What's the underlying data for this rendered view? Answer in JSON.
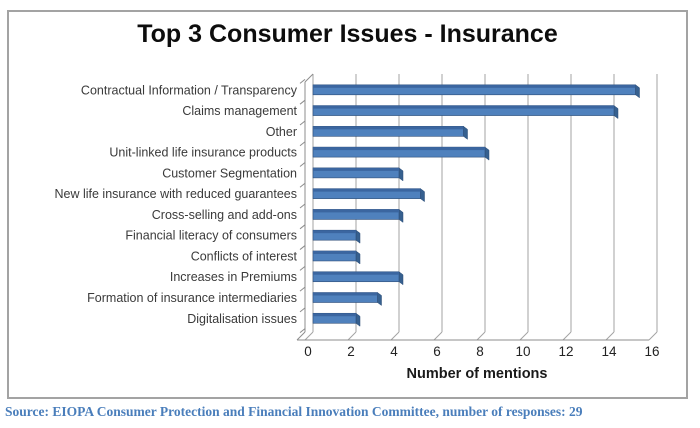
{
  "header": {
    "title": "Top 3 Consumer Issues - Insurance"
  },
  "chart_data": {
    "type": "bar",
    "orientation": "horizontal",
    "title": "Top 3 Consumer Issues - Insurance",
    "categories": [
      "Contractual Information / Transparency",
      "Claims management",
      "Other",
      "Unit-linked life insurance products",
      "Customer Segmentation",
      "New life insurance with reduced guarantees",
      "Cross-selling and add-ons",
      "Financial literacy of consumers",
      "Conflicts of interest",
      "Increases in Premiums",
      "Formation of insurance intermediaries",
      "Digitalisation issues"
    ],
    "values": [
      15,
      14,
      7,
      8,
      4,
      5,
      4,
      2,
      2,
      4,
      3,
      2
    ],
    "xlabel": "Number of mentions",
    "ylabel": "",
    "xlim": [
      0,
      16
    ],
    "xticks": [
      0,
      2,
      4,
      6,
      8,
      10,
      12,
      14,
      16
    ],
    "grid": true,
    "legend": "none",
    "style": "3d-effect",
    "colors": {
      "bar_fill": "#4f81bd",
      "bar_top": "#3b66a0",
      "bar_cap": "#36608f",
      "bar_edge": "#2d4d77",
      "gridline": "#a3a3a3",
      "axis": "#8c8c8c",
      "category_text": "#3a3a3a",
      "tick_text": "#222222",
      "axis_title_text": "#1a1a1a"
    }
  },
  "footer": {
    "source": "Source: EIOPA Consumer Protection and Financial Innovation Committee, number of responses: 29"
  }
}
